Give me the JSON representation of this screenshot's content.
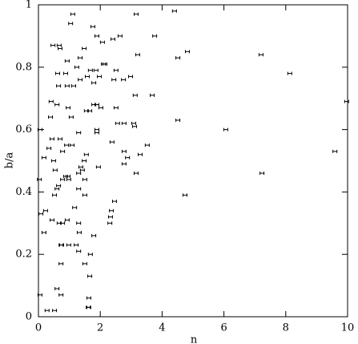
{
  "chart_data": {
    "type": "scatter",
    "xlabel": "n",
    "ylabel": "b/a",
    "xlim": [
      0,
      10
    ],
    "ylim": [
      0,
      1
    ],
    "xticks": [
      0,
      2,
      4,
      6,
      8,
      10
    ],
    "yticks": [
      0,
      0.2,
      0.4,
      0.6,
      0.8,
      1
    ],
    "x": [
      1.11,
      3.16,
      4.4,
      1.04,
      1.89,
      2.64,
      3.76,
      0.47,
      0.67,
      0.7,
      1.48,
      1.76,
      2.07,
      2.41,
      4.82,
      4.51,
      3.21,
      7.2,
      8.13,
      1.35,
      0.93,
      1.24,
      1.86,
      1.68,
      2.15,
      2.1,
      2.51,
      0.88,
      0.62,
      1.58,
      1.97,
      2.98,
      1.35,
      2.75,
      2.44,
      1.14,
      0.65,
      1.79,
      0.93,
      3.13,
      3.68,
      0.41,
      9.97,
      0.6,
      1.89,
      2.02,
      2.51,
      0.96,
      1.79,
      1.55,
      1.66,
      1.06,
      0.39,
      4.51,
      3.08,
      2.56,
      2.77,
      3.11,
      0.05,
      1.89,
      6.06,
      1.89,
      1.3,
      0.44,
      0.7,
      2.38,
      3.52,
      1.09,
      0.91,
      0.34,
      0.78,
      2.77,
      3.29,
      9.59,
      2.88,
      0.18,
      1.55,
      1.48,
      0.49,
      2.77,
      1.94,
      1.37,
      0.54,
      1.42,
      1.3,
      3.16,
      7.23,
      0.96,
      0.88,
      0.78,
      0.98,
      0.03,
      1.5,
      0.65,
      1.3,
      0.6,
      0.52,
      1.5,
      4.74,
      2.46,
      0.23,
      1.17,
      2.36,
      2.33,
      0.08,
      2.31,
      0.44,
      0.93,
      0.67,
      0.78,
      1.3,
      0.18,
      1.32,
      1.79,
      0.73,
      0.98,
      1.22,
      0.75,
      1.3,
      1.68,
      0.73,
      1.5,
      1.66,
      0.6,
      0.73,
      0.05,
      1.63,
      1.61,
      1.63,
      0.28,
      0.52
    ],
    "values": [
      0.97,
      0.97,
      0.98,
      0.94,
      0.9,
      0.9,
      0.9,
      0.87,
      0.87,
      0.86,
      0.86,
      0.93,
      0.88,
      0.89,
      0.85,
      0.83,
      0.84,
      0.84,
      0.78,
      0.83,
      0.82,
      0.8,
      0.79,
      0.79,
      0.81,
      0.81,
      0.79,
      0.78,
      0.78,
      0.77,
      0.77,
      0.77,
      0.76,
      0.76,
      0.76,
      0.74,
      0.74,
      0.75,
      0.74,
      0.71,
      0.71,
      0.69,
      0.69,
      0.68,
      0.68,
      0.67,
      0.67,
      0.67,
      0.68,
      0.66,
      0.66,
      0.64,
      0.64,
      0.63,
      0.62,
      0.62,
      0.62,
      0.61,
      0.6,
      0.6,
      0.6,
      0.59,
      0.59,
      0.57,
      0.57,
      0.56,
      0.55,
      0.55,
      0.55,
      0.54,
      0.53,
      0.53,
      0.52,
      0.53,
      0.51,
      0.51,
      0.52,
      0.5,
      0.5,
      0.49,
      0.48,
      0.48,
      0.47,
      0.47,
      0.46,
      0.46,
      0.46,
      0.45,
      0.45,
      0.44,
      0.44,
      0.44,
      0.44,
      0.42,
      0.41,
      0.41,
      0.39,
      0.39,
      0.39,
      0.37,
      0.34,
      0.35,
      0.34,
      0.32,
      0.33,
      0.3,
      0.31,
      0.31,
      0.3,
      0.3,
      0.3,
      0.27,
      0.27,
      0.26,
      0.23,
      0.23,
      0.23,
      0.23,
      0.21,
      0.2,
      0.17,
      0.17,
      0.13,
      0.09,
      0.07,
      0.07,
      0.06,
      0.03,
      0.03,
      0.02,
      0.02
    ]
  }
}
